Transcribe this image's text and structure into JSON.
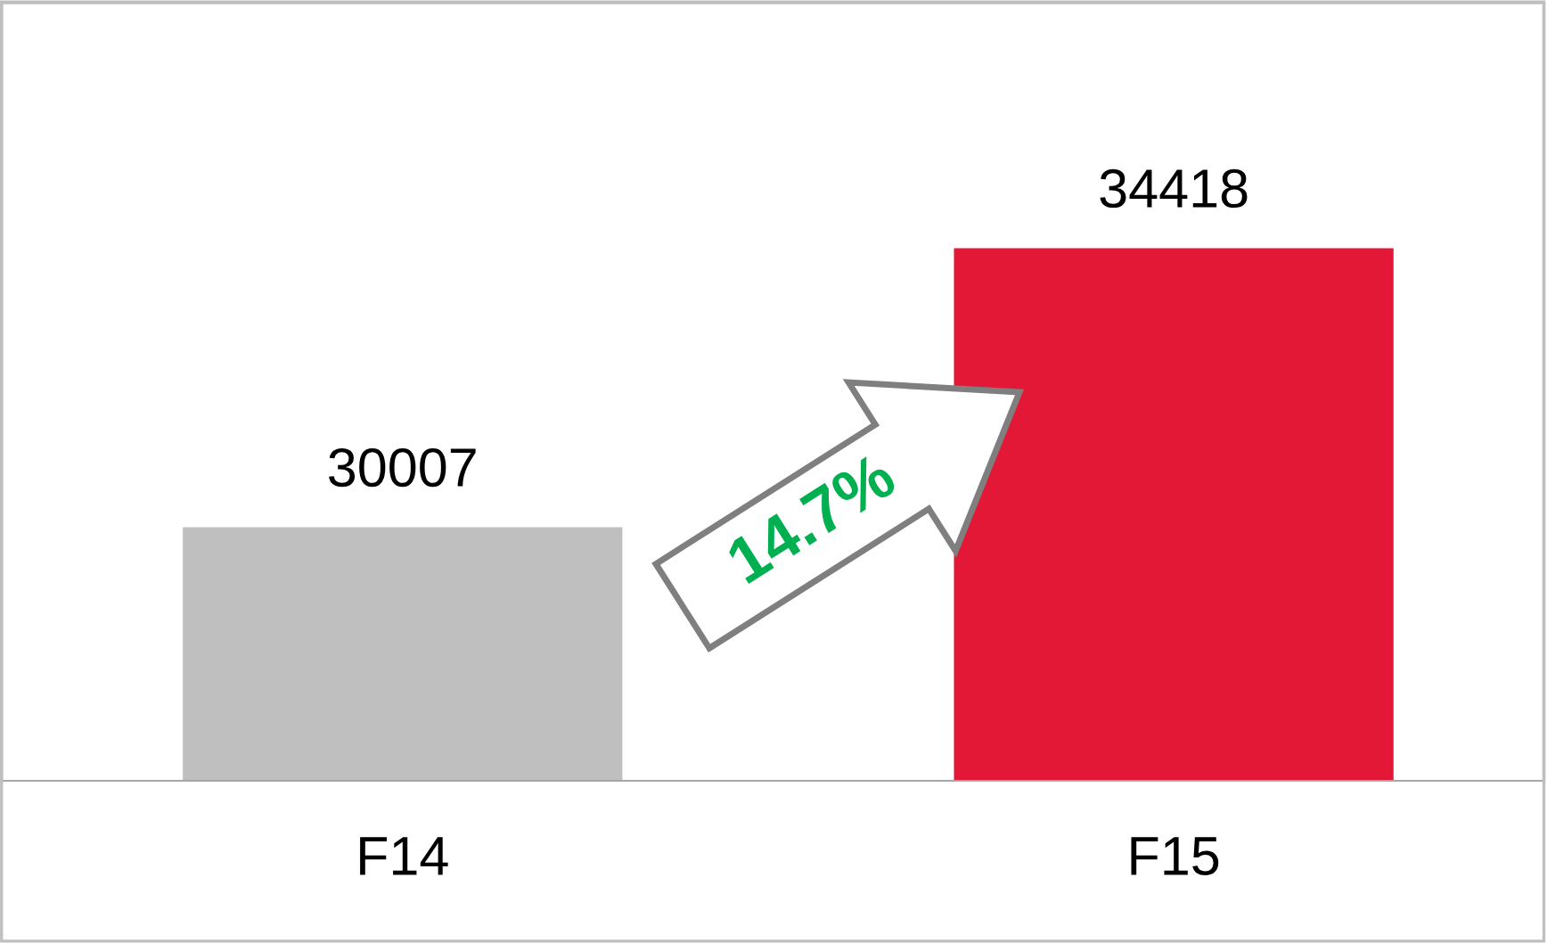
{
  "chart_data": {
    "type": "bar",
    "categories": [
      "F14",
      "F15"
    ],
    "values": [
      30007,
      34418
    ],
    "colors": [
      "#bfbfbf",
      "#e31837"
    ],
    "ylim": [
      26000,
      38300
    ],
    "data_labels": true,
    "grid": false,
    "legend": false,
    "annotations": [
      "14.7%"
    ]
  }
}
